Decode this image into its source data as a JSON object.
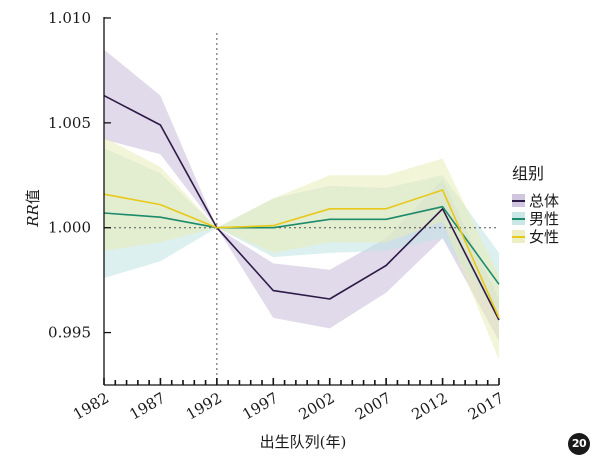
{
  "chart_data": {
    "type": "line",
    "xlabel": "出生队列(年)",
    "ylabel_italic": "RR",
    "ylabel_suffix": "值",
    "x": [
      1982,
      1987,
      1992,
      1997,
      2002,
      2007,
      2012,
      2017
    ],
    "x_tick_labels": [
      "1982",
      "1987",
      "1992",
      "1997",
      "2002",
      "2007",
      "2012",
      "2017"
    ],
    "xlim": [
      1982,
      2017
    ],
    "ylim": [
      0.9925,
      1.01
    ],
    "y_ticks": [
      0.995,
      1.0,
      1.005,
      1.01
    ],
    "y_tick_labels": [
      "0.995",
      "1.000",
      "1.005",
      "1.010"
    ],
    "reference_hline": 1.0,
    "reference_vline": 1992,
    "legend_title": "组别",
    "legend_position": "right",
    "series": [
      {
        "name": "总体",
        "color": "#2e1a47",
        "band_color": "#c9bcdb",
        "values": [
          1.0063,
          1.0049,
          1.0,
          0.997,
          0.9966,
          0.9982,
          1.0009,
          0.9956
        ],
        "lower": [
          1.0042,
          1.0035,
          1.0,
          0.9957,
          0.9952,
          0.9969,
          0.9995,
          0.9946
        ],
        "upper": [
          1.0085,
          1.0063,
          1.0,
          0.9983,
          0.998,
          0.9995,
          1.0023,
          0.9966
        ]
      },
      {
        "name": "男性",
        "color": "#1d8a6a",
        "band_color": "#bfe3e3",
        "values": [
          1.0007,
          1.0005,
          1.0,
          1.0,
          1.0004,
          1.0004,
          1.001,
          0.9973
        ],
        "lower": [
          0.9976,
          0.9984,
          1.0,
          0.9986,
          0.9988,
          0.9989,
          0.9995,
          0.9958
        ],
        "upper": [
          1.0038,
          1.0026,
          1.0,
          1.0014,
          1.002,
          1.0019,
          1.0025,
          0.9988
        ]
      },
      {
        "name": "女性",
        "color": "#e8c81a",
        "band_color": "#e9ecb8",
        "values": [
          1.0016,
          1.0011,
          1.0,
          1.0001,
          1.0009,
          1.0009,
          1.0018,
          0.9957
        ],
        "lower": [
          0.9989,
          0.9993,
          1.0,
          0.9988,
          0.9993,
          0.9993,
          1.0003,
          0.9937
        ],
        "upper": [
          1.0043,
          1.0029,
          1.0,
          1.0014,
          1.0025,
          1.0025,
          1.0033,
          0.9977
        ]
      }
    ]
  },
  "badge": {
    "text": "20"
  }
}
